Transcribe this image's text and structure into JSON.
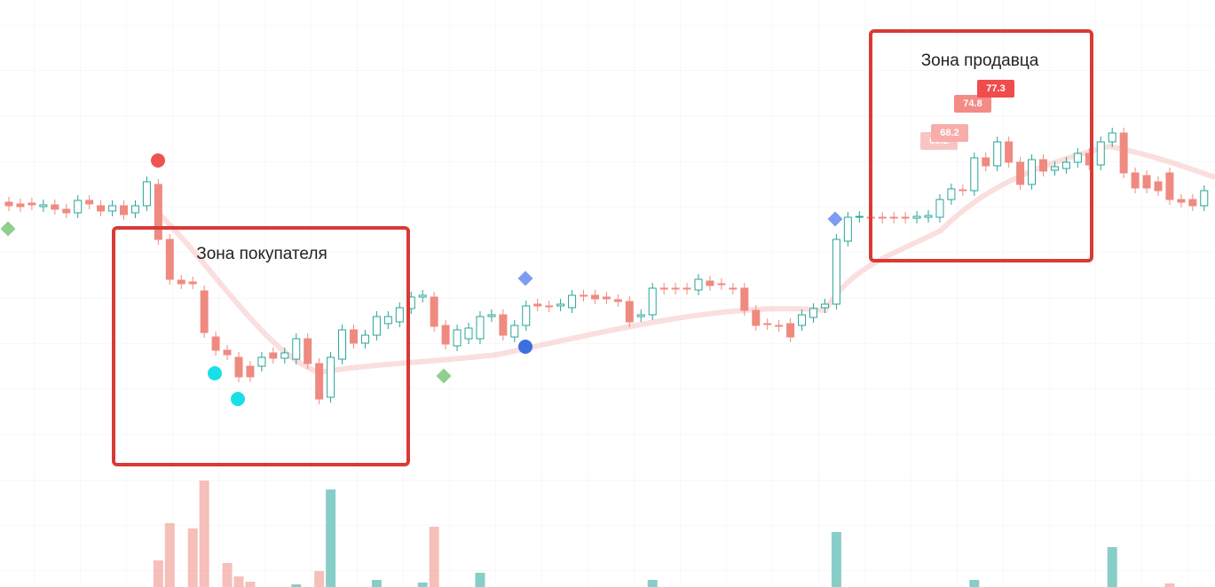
{
  "chart_data": {
    "type": "candlestick",
    "categories": [
      null,
      null,
      null,
      null,
      null,
      null,
      null,
      null,
      null,
      null,
      null,
      null,
      null,
      null,
      null,
      null,
      null,
      null,
      null,
      null,
      null,
      null,
      null,
      null,
      null,
      null,
      null,
      null,
      null,
      null,
      null,
      null,
      null,
      null,
      null,
      null,
      null,
      null,
      null,
      null,
      null,
      null,
      null,
      null,
      null,
      null,
      null,
      null,
      null,
      null,
      null,
      null,
      null,
      null,
      null,
      null,
      null,
      null,
      null,
      null,
      null,
      null,
      null,
      null,
      null,
      null,
      null,
      null,
      null,
      null,
      null,
      null,
      null,
      null,
      null,
      null,
      null,
      null,
      null,
      null,
      null,
      null,
      null,
      null,
      null,
      null,
      null,
      null,
      null,
      null,
      null,
      null,
      null,
      null,
      null,
      null,
      null,
      null,
      null,
      null,
      null,
      null,
      null,
      null,
      null
    ],
    "open": [
      434,
      432,
      433,
      429,
      431,
      426,
      422,
      436,
      430,
      424,
      430,
      422,
      430,
      454,
      392,
      346,
      344,
      334,
      282,
      267,
      259,
      249,
      249,
      264,
      258,
      257,
      280,
      252,
      214,
      257,
      290,
      275,
      284,
      297,
      299,
      314,
      327,
      327,
      295,
      272,
      280,
      280,
      305,
      307,
      282,
      295,
      319,
      317,
      317,
      315,
      329,
      329,
      327,
      324,
      322,
      305,
      307,
      337,
      337,
      337,
      335,
      345,
      342,
      337,
      337,
      312,
      297,
      295,
      297,
      295,
      304,
      315,
      319,
      390,
      417,
      417,
      417,
      417,
      417,
      416,
      417,
      417,
      437,
      448,
      447,
      484,
      475,
      502,
      479,
      454,
      482,
      470,
      472,
      479,
      489,
      476,
      502,
      512,
      467,
      464,
      457,
      467,
      437,
      437,
      430
    ],
    "close": [
      430,
      429,
      431,
      431,
      426,
      422,
      436,
      432,
      424,
      430,
      420,
      430,
      457,
      392,
      347,
      342,
      342,
      287,
      267,
      262,
      237,
      237,
      259,
      258,
      264,
      280,
      252,
      212,
      259,
      290,
      275,
      284,
      305,
      305,
      315,
      327,
      329,
      294,
      274,
      290,
      292,
      305,
      307,
      284,
      295,
      317,
      317,
      316,
      319,
      329,
      328,
      325,
      325,
      322,
      299,
      307,
      337,
      336,
      336,
      336,
      347,
      340,
      341,
      336,
      312,
      295,
      296,
      294,
      282,
      307,
      314,
      319,
      392,
      417,
      418,
      416,
      416,
      416,
      416,
      418,
      419,
      437,
      449,
      447,
      484,
      475,
      502,
      479,
      454,
      482,
      469,
      474,
      479,
      489,
      476,
      502,
      512,
      467,
      450,
      450,
      447,
      437,
      434,
      430,
      447
    ],
    "high": [
      440,
      438,
      439,
      437,
      437,
      432,
      442,
      442,
      436,
      436,
      436,
      436,
      463,
      460,
      398,
      352,
      350,
      340,
      288,
      273,
      265,
      255,
      265,
      270,
      270,
      286,
      286,
      258,
      265,
      296,
      296,
      290,
      311,
      311,
      321,
      333,
      335,
      333,
      301,
      296,
      298,
      311,
      313,
      313,
      301,
      323,
      325,
      323,
      325,
      335,
      335,
      335,
      333,
      330,
      328,
      313,
      343,
      343,
      343,
      343,
      353,
      351,
      348,
      343,
      343,
      318,
      303,
      301,
      303,
      313,
      320,
      325,
      398,
      423,
      424,
      423,
      423,
      423,
      423,
      424,
      425,
      443,
      455,
      454,
      490,
      490,
      508,
      508,
      485,
      488,
      488,
      480,
      485,
      495,
      495,
      508,
      518,
      518,
      473,
      470,
      463,
      473,
      443,
      443,
      453
    ],
    "low": [
      424,
      423,
      425,
      423,
      420,
      416,
      416,
      426,
      418,
      418,
      414,
      416,
      424,
      386,
      341,
      336,
      336,
      281,
      261,
      256,
      231,
      231,
      243,
      252,
      252,
      251,
      246,
      206,
      208,
      251,
      269,
      269,
      278,
      291,
      293,
      308,
      321,
      288,
      268,
      266,
      274,
      274,
      299,
      278,
      276,
      289,
      311,
      310,
      311,
      309,
      322,
      319,
      319,
      316,
      293,
      299,
      301,
      330,
      330,
      330,
      329,
      334,
      335,
      330,
      306,
      289,
      290,
      288,
      276,
      289,
      298,
      309,
      313,
      384,
      411,
      410,
      410,
      410,
      410,
      410,
      411,
      411,
      431,
      441,
      441,
      469,
      469,
      473,
      448,
      448,
      463,
      464,
      466,
      473,
      470,
      470,
      496,
      461,
      444,
      444,
      441,
      431,
      428,
      424,
      424
    ],
    "up_color": "#26a69a",
    "down_color": "#ef8a80",
    "volume": [
      null,
      null,
      null,
      null,
      null,
      null,
      null,
      null,
      null,
      null,
      null,
      null,
      null,
      30,
      72,
      null,
      66,
      120,
      null,
      27,
      12,
      6,
      null,
      null,
      null,
      3,
      null,
      18,
      110,
      null,
      null,
      null,
      8,
      null,
      null,
      null,
      5,
      68,
      null,
      null,
      null,
      16,
      null,
      null,
      null,
      null,
      null,
      null,
      null,
      null,
      null,
      null,
      null,
      null,
      null,
      null,
      8,
      null,
      null,
      null,
      null,
      null,
      null,
      null,
      null,
      null,
      null,
      null,
      null,
      null,
      null,
      null,
      62,
      null,
      null,
      null,
      null,
      null,
      null,
      null,
      null,
      null,
      null,
      null,
      8,
      null,
      null,
      null,
      null,
      null,
      null,
      null,
      null,
      null,
      null,
      null,
      45,
      null,
      null,
      null,
      null,
      4,
      null,
      null,
      null
    ],
    "volume_lim": [
      0,
      140
    ],
    "ylim": [
      0,
      662
    ],
    "grid": true,
    "zones": [
      "Зона покупателя",
      "Зона продавца"
    ],
    "labels": [
      "63.2",
      "68.2",
      "74.8",
      "77.3"
    ]
  }
}
